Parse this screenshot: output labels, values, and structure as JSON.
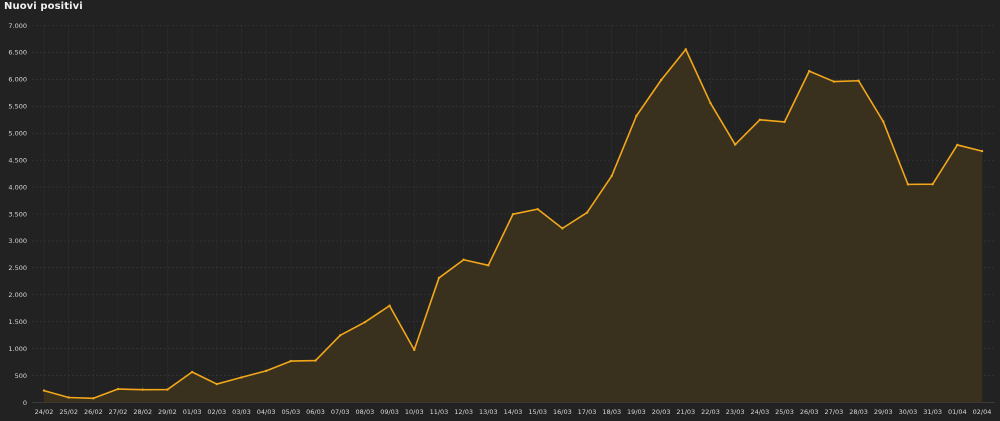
{
  "chart_data": {
    "type": "area",
    "title": "Nuovi positivi",
    "xlabel": "",
    "ylabel": "",
    "ylim": [
      0,
      7000
    ],
    "y_ticks": [
      0,
      500,
      1000,
      1500,
      2000,
      2500,
      3000,
      3500,
      4000,
      4500,
      5000,
      5500,
      6000,
      6500,
      7000
    ],
    "y_tick_labels": [
      "0",
      "500",
      "1.000",
      "1.500",
      "2.000",
      "2.500",
      "3.000",
      "3.500",
      "4.000",
      "4.500",
      "5.000",
      "5.500",
      "6.000",
      "6.500",
      "7.000"
    ],
    "categories": [
      "24/02",
      "25/02",
      "26/02",
      "27/02",
      "28/02",
      "29/02",
      "01/03",
      "02/03",
      "03/03",
      "04/03",
      "05/03",
      "06/03",
      "07/03",
      "08/03",
      "09/03",
      "10/03",
      "11/03",
      "12/03",
      "13/03",
      "14/03",
      "15/03",
      "16/03",
      "17/03",
      "18/03",
      "19/03",
      "20/03",
      "21/03",
      "22/03",
      "23/03",
      "24/03",
      "25/03",
      "26/03",
      "27/03",
      "28/03",
      "29/03",
      "30/03",
      "31/03",
      "01/04",
      "02/04"
    ],
    "values": [
      221,
      93,
      78,
      250,
      238,
      240,
      566,
      342,
      466,
      587,
      769,
      778,
      1247,
      1492,
      1797,
      977,
      2313,
      2651,
      2547,
      3497,
      3590,
      3233,
      3526,
      4207,
      5322,
      5986,
      6557,
      5560,
      4789,
      5249,
      5210,
      6153,
      5959,
      5974,
      5217,
      4050,
      4053,
      4782,
      4668
    ],
    "grid": true,
    "colors": {
      "line": "#f2a71b",
      "fill": "#3b321f",
      "background": "#222222",
      "grid": "#3a3a3a",
      "text": "#d8d8d8"
    }
  }
}
